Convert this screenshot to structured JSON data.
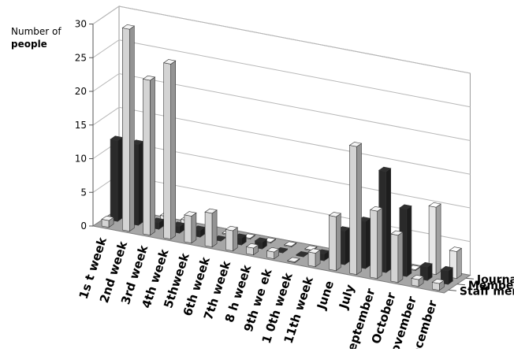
{
  "chart_data": {
    "type": "bar",
    "style": "3d-clustered-columns",
    "title": "",
    "ylabel": [
      "Number of",
      "people"
    ],
    "xlabel": "",
    "ylim": [
      0,
      30
    ],
    "y_ticks": [
      "0",
      "5",
      "10",
      "15",
      "20",
      "25",
      "30"
    ],
    "grid": true,
    "categories": [
      "1st week",
      "2nd week",
      "3rd week",
      "4th week",
      "5th week",
      "6th week",
      "7th week",
      "8th week",
      "9th week",
      "10th week",
      "11th week",
      "June",
      "July",
      "September",
      "October",
      "November",
      "December"
    ],
    "category_labels": [
      "1s t week",
      "2nd week",
      "3rd week",
      "4th week",
      "5thweek",
      "6th week",
      "7th week",
      "8 h week",
      "9th we ek",
      "1 0th week",
      "11th  week",
      "June",
      "July",
      "September",
      "October",
      "November",
      "December"
    ],
    "series": [
      {
        "name": "Staff members",
        "values": [
          1,
          30,
          23,
          26,
          4,
          5,
          3,
          1,
          1,
          0,
          2,
          8,
          19,
          10,
          7,
          1,
          1
        ],
        "color": "#d4d4d4"
      },
      {
        "name": "Members of the public",
        "values": [
          12,
          12,
          1,
          1,
          1,
          0,
          1,
          1,
          0,
          0,
          1,
          5,
          7,
          15,
          10,
          2,
          2
        ],
        "color": "#2a2a2a"
      },
      {
        "name": "Journalists",
        "values": [
          1,
          1,
          1,
          1,
          0,
          0,
          0,
          0,
          0,
          0,
          0,
          0,
          0,
          1,
          0,
          10,
          4
        ],
        "color": "#e6e6e6"
      }
    ],
    "legend": "series labels on depth axis (right)"
  }
}
